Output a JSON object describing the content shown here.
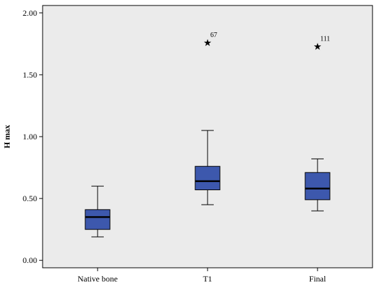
{
  "chart_data": {
    "type": "box",
    "title": "",
    "xlabel": "",
    "ylabel": "H max",
    "ylim": [
      -0.06,
      2.06
    ],
    "yticks": [
      0.0,
      0.5,
      1.0,
      1.5,
      2.0
    ],
    "ytick_labels": [
      "0.00",
      "0.50",
      "1.00",
      "1.50",
      "2.00"
    ],
    "categories": [
      "Native bone",
      "T1",
      "Final"
    ],
    "boxes": [
      {
        "category": "Native bone",
        "whisker_low": 0.19,
        "q1": 0.25,
        "median": 0.35,
        "q3": 0.41,
        "whisker_high": 0.6,
        "outliers": []
      },
      {
        "category": "T1",
        "whisker_low": 0.45,
        "q1": 0.57,
        "median": 0.64,
        "q3": 0.76,
        "whisker_high": 1.05,
        "outliers": [
          {
            "value": 1.76,
            "label": "67"
          }
        ]
      },
      {
        "category": "Final",
        "whisker_low": 0.4,
        "q1": 0.49,
        "median": 0.58,
        "q3": 0.71,
        "whisker_high": 0.82,
        "outliers": [
          {
            "value": 1.73,
            "label": "111"
          }
        ]
      }
    ],
    "box_color": "#3d58ad",
    "background_color": "#ebebeb",
    "grid": false,
    "legend": "none"
  }
}
